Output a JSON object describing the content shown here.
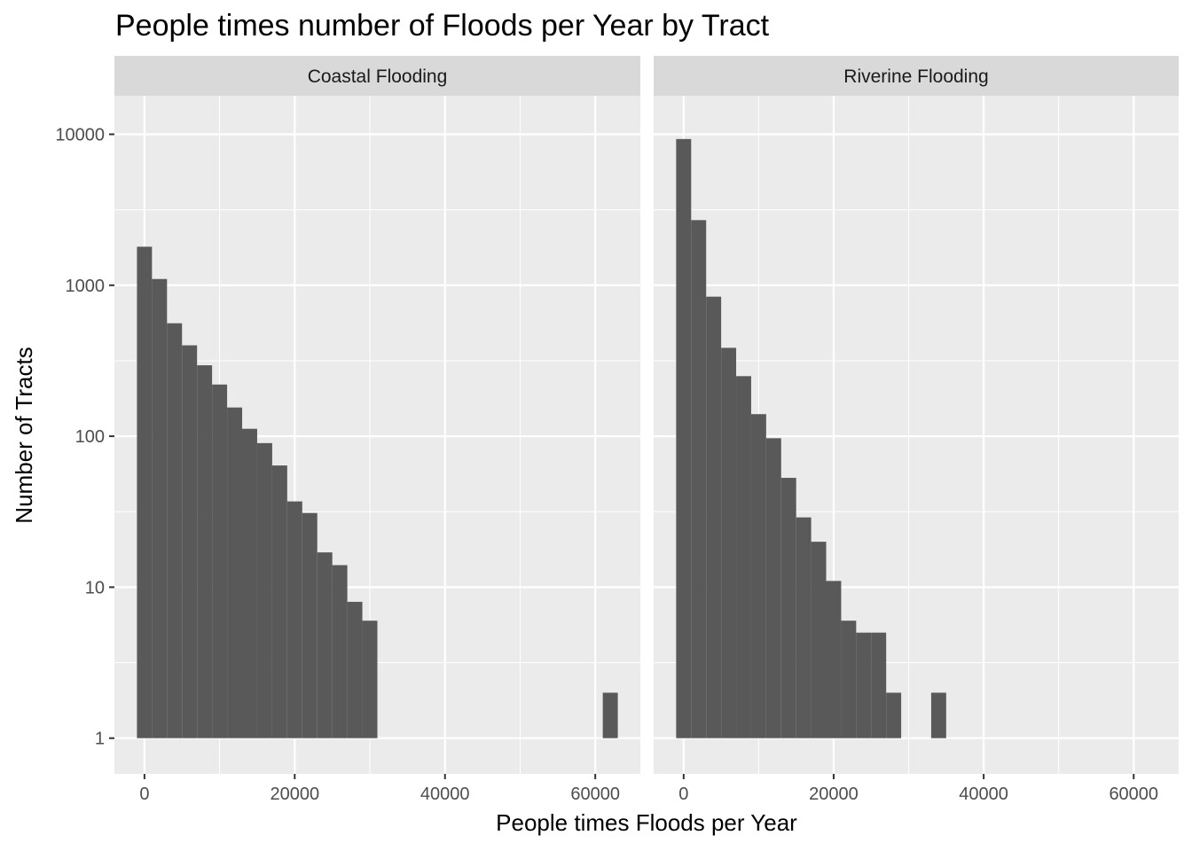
{
  "chart_data": {
    "type": "bar",
    "title": "People times number of Floods per Year by Tract",
    "xlabel": "People times Floods per Year",
    "ylabel": "Number of Tracts",
    "y_scale": "log10",
    "ylim": [
      0.58,
      18000
    ],
    "xlim": [
      -4000,
      66000
    ],
    "bin_width": 2000,
    "x_ticks": [
      "0",
      "20000",
      "40000",
      "60000"
    ],
    "y_ticks": [
      "1",
      "10",
      "100",
      "1000",
      "10000"
    ],
    "grid": true,
    "colors": {
      "bar": "#595959",
      "panel": "#ebebeb",
      "grid": "#ffffff",
      "strip": "#d9d9d9"
    },
    "facets": [
      {
        "name": "Coastal Flooding",
        "bins": [
          {
            "x": 0,
            "count": 1800
          },
          {
            "x": 2000,
            "count": 1100
          },
          {
            "x": 4000,
            "count": 560
          },
          {
            "x": 6000,
            "count": 400
          },
          {
            "x": 8000,
            "count": 295
          },
          {
            "x": 10000,
            "count": 220
          },
          {
            "x": 12000,
            "count": 155
          },
          {
            "x": 14000,
            "count": 112
          },
          {
            "x": 16000,
            "count": 90
          },
          {
            "x": 18000,
            "count": 64
          },
          {
            "x": 20000,
            "count": 37
          },
          {
            "x": 22000,
            "count": 31
          },
          {
            "x": 24000,
            "count": 17
          },
          {
            "x": 26000,
            "count": 14
          },
          {
            "x": 28000,
            "count": 8
          },
          {
            "x": 30000,
            "count": 6
          },
          {
            "x": 62000,
            "count": 2
          }
        ]
      },
      {
        "name": "Riverine Flooding",
        "bins": [
          {
            "x": 0,
            "count": 9300
          },
          {
            "x": 2000,
            "count": 2700
          },
          {
            "x": 4000,
            "count": 840
          },
          {
            "x": 6000,
            "count": 385
          },
          {
            "x": 8000,
            "count": 250
          },
          {
            "x": 10000,
            "count": 140
          },
          {
            "x": 12000,
            "count": 97
          },
          {
            "x": 14000,
            "count": 53
          },
          {
            "x": 16000,
            "count": 29
          },
          {
            "x": 18000,
            "count": 20
          },
          {
            "x": 20000,
            "count": 11
          },
          {
            "x": 22000,
            "count": 6
          },
          {
            "x": 24000,
            "count": 5
          },
          {
            "x": 26000,
            "count": 5
          },
          {
            "x": 28000,
            "count": 2
          },
          {
            "x": 34000,
            "count": 2
          }
        ]
      }
    ]
  }
}
